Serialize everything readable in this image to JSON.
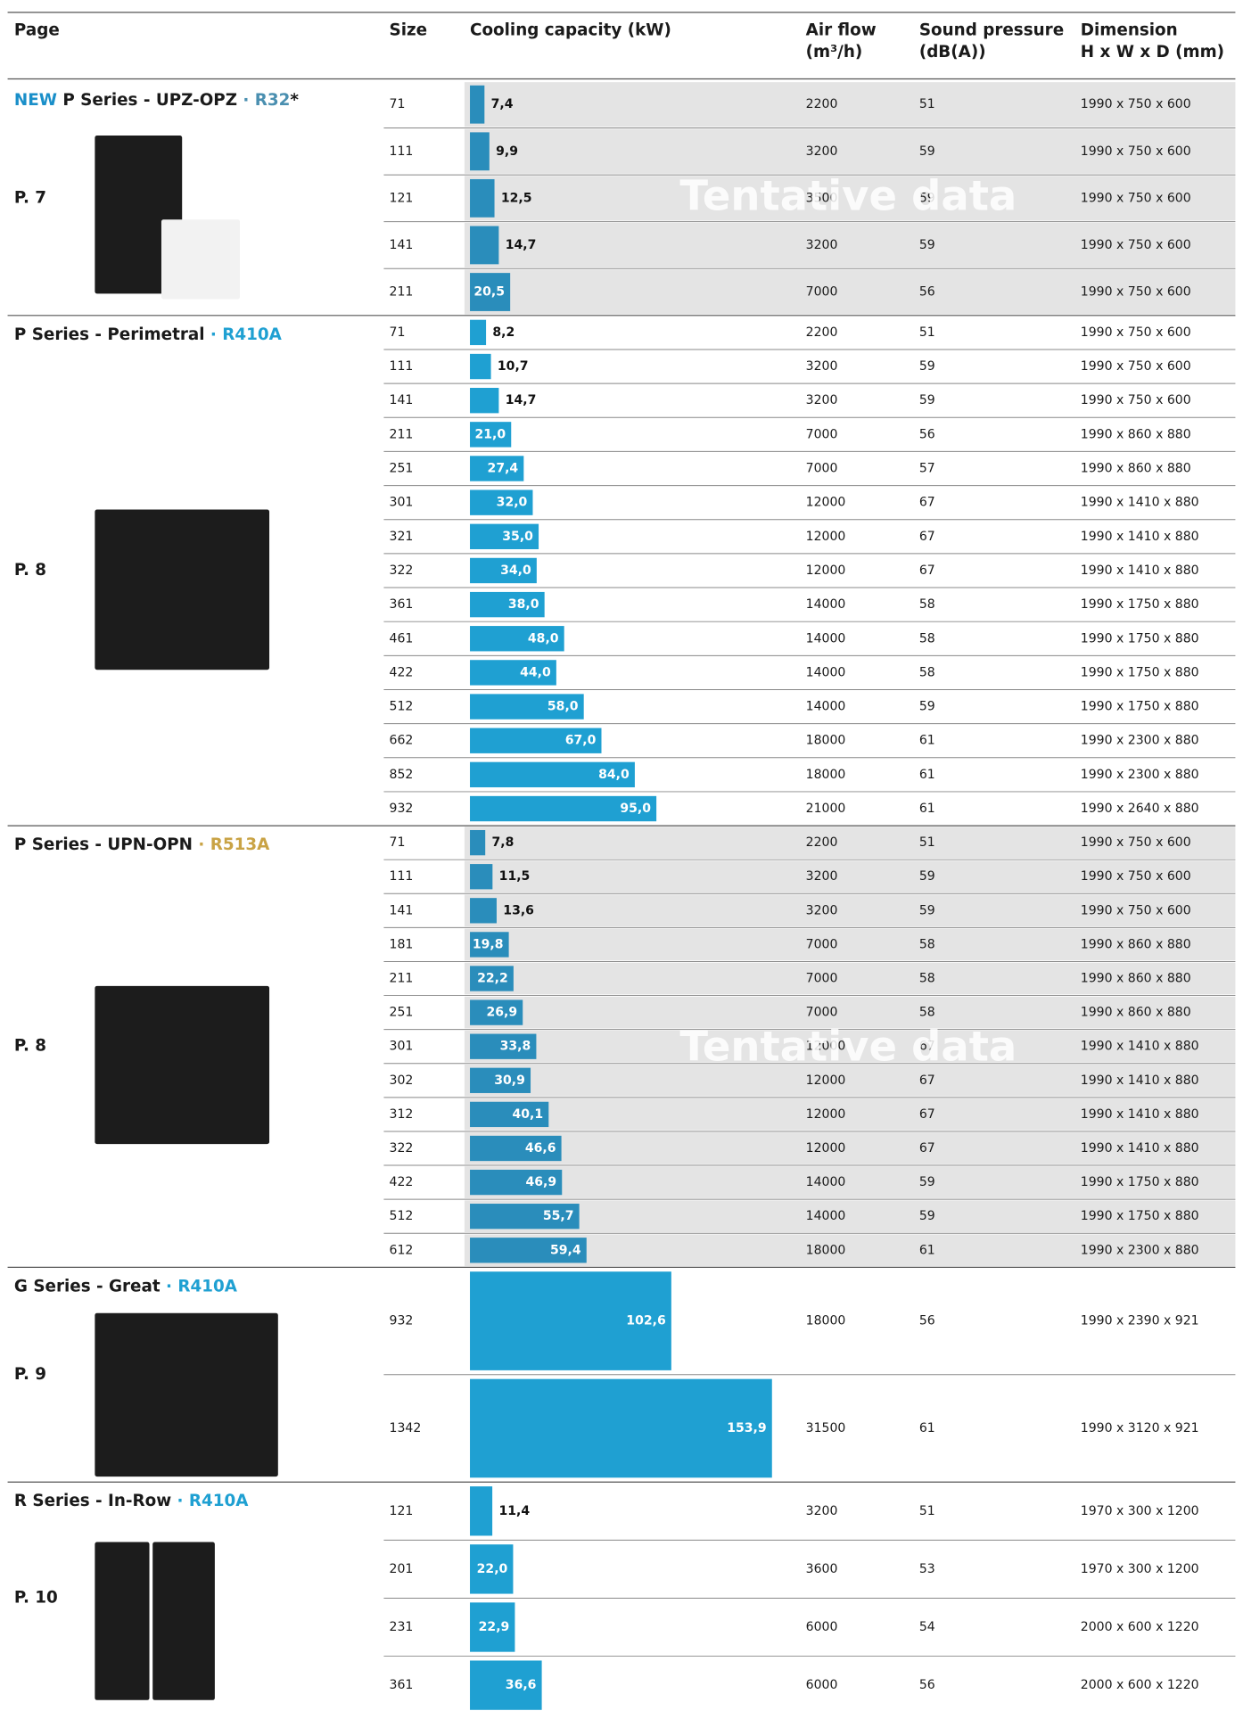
{
  "header": {
    "page": "Page",
    "size": "Size",
    "capacity": "Cooling capacity (kW)",
    "airflow": [
      "Air flow",
      "(m³/h)"
    ],
    "sound": [
      "Sound pressure",
      "(dB(A))"
    ],
    "dimension": [
      "Dimension",
      "H x W x D (mm)"
    ]
  },
  "sections": [
    {
      "new": "NEW",
      "name": "P Series - UPZ-OPZ",
      "refrigerant": "· R32",
      "suffix": "*",
      "refrigerant_color": "#4a8fb0",
      "page": "P. 7",
      "shaded": true,
      "bar_color": "#2a8dbb",
      "watermark": "Tentative data",
      "rows": [
        {
          "size": 71,
          "capacity": {
            "value": 7.4,
            "label": "7,4"
          },
          "airflow": 2200,
          "sound": 51,
          "dimension": "1990 x 750 x 600"
        },
        {
          "size": 111,
          "capacity": {
            "value": 9.9,
            "label": "9,9"
          },
          "airflow": 3200,
          "sound": 59,
          "dimension": "1990 x 750 x 600"
        },
        {
          "size": 121,
          "capacity": {
            "value": 12.5,
            "label": "12,5"
          },
          "airflow": 3500,
          "sound": 59,
          "dimension": "1990 x 750 x 600"
        },
        {
          "size": 141,
          "capacity": {
            "value": 14.7,
            "label": "14,7"
          },
          "airflow": 3200,
          "sound": 59,
          "dimension": "1990 x 750 x 600"
        },
        {
          "size": 211,
          "capacity": {
            "value": 20.5,
            "label": "20,5"
          },
          "airflow": 7000,
          "sound": 56,
          "dimension": "1990 x 750 x 600"
        }
      ]
    },
    {
      "name": "P Series - Perimetral",
      "refrigerant": "· R410A",
      "refrigerant_color": "#1fa0d2",
      "page": "P. 8",
      "shaded": false,
      "bar_color": "#1fa0d2",
      "rows": [
        {
          "size": 71,
          "capacity": {
            "value": 8.2,
            "label": "8,2"
          },
          "airflow": 2200,
          "sound": 51,
          "dimension": "1990 x 750 x 600"
        },
        {
          "size": 111,
          "capacity": {
            "value": 10.7,
            "label": "10,7"
          },
          "airflow": 3200,
          "sound": 59,
          "dimension": "1990 x 750 x 600"
        },
        {
          "size": 141,
          "capacity": {
            "value": 14.7,
            "label": "14,7"
          },
          "airflow": 3200,
          "sound": 59,
          "dimension": "1990 x 750 x 600"
        },
        {
          "size": 211,
          "capacity": {
            "value": 21.0,
            "label": "21,0"
          },
          "airflow": 7000,
          "sound": 56,
          "dimension": "1990 x 860 x 880"
        },
        {
          "size": 251,
          "capacity": {
            "value": 27.4,
            "label": "27,4"
          },
          "airflow": 7000,
          "sound": 57,
          "dimension": "1990 x 860 x 880"
        },
        {
          "size": 301,
          "capacity": {
            "value": 32.0,
            "label": "32,0"
          },
          "airflow": 12000,
          "sound": 67,
          "dimension": "1990 x 1410 x 880"
        },
        {
          "size": 321,
          "capacity": {
            "value": 35.0,
            "label": "35,0"
          },
          "airflow": 12000,
          "sound": 67,
          "dimension": "1990 x 1410 x 880"
        },
        {
          "size": 322,
          "capacity": {
            "value": 34.0,
            "label": "34,0"
          },
          "airflow": 12000,
          "sound": 67,
          "dimension": "1990 x 1410 x 880"
        },
        {
          "size": 361,
          "capacity": {
            "value": 38.0,
            "label": "38,0"
          },
          "airflow": 14000,
          "sound": 58,
          "dimension": "1990 x 1750 x 880"
        },
        {
          "size": 461,
          "capacity": {
            "value": 48.0,
            "label": "48,0"
          },
          "airflow": 14000,
          "sound": 58,
          "dimension": "1990 x 1750 x 880"
        },
        {
          "size": 422,
          "capacity": {
            "value": 44.0,
            "label": "44,0"
          },
          "airflow": 14000,
          "sound": 58,
          "dimension": "1990 x 1750 x 880"
        },
        {
          "size": 512,
          "capacity": {
            "value": 58.0,
            "label": "58,0"
          },
          "airflow": 14000,
          "sound": 59,
          "dimension": "1990 x 1750 x 880"
        },
        {
          "size": 662,
          "capacity": {
            "value": 67.0,
            "label": "67,0"
          },
          "airflow": 18000,
          "sound": 61,
          "dimension": "1990 x 2300 x 880"
        },
        {
          "size": 852,
          "capacity": {
            "value": 84.0,
            "label": "84,0"
          },
          "airflow": 18000,
          "sound": 61,
          "dimension": "1990 x 2300 x 880"
        },
        {
          "size": 932,
          "capacity": {
            "value": 95.0,
            "label": "95,0"
          },
          "airflow": 21000,
          "sound": 61,
          "dimension": "1990 x 2640 x 880"
        }
      ]
    },
    {
      "name": "P Series - UPN-OPN",
      "refrigerant": "· R513A",
      "refrigerant_color": "#c9a345",
      "page": "P. 8",
      "shaded": true,
      "bar_color": "#2a8dbb",
      "watermark": "Tentative data",
      "rows": [
        {
          "size": 71,
          "capacity": {
            "value": 7.8,
            "label": "7,8"
          },
          "airflow": 2200,
          "sound": 51,
          "dimension": "1990 x 750 x 600"
        },
        {
          "size": 111,
          "capacity": {
            "value": 11.5,
            "label": "11,5"
          },
          "airflow": 3200,
          "sound": 59,
          "dimension": "1990 x 750 x 600"
        },
        {
          "size": 141,
          "capacity": {
            "value": 13.6,
            "label": "13,6"
          },
          "airflow": 3200,
          "sound": 59,
          "dimension": "1990 x 750 x 600"
        },
        {
          "size": 181,
          "capacity": {
            "value": 19.8,
            "label": "19,8"
          },
          "airflow": 7000,
          "sound": 58,
          "dimension": "1990 x 860 x 880"
        },
        {
          "size": 211,
          "capacity": {
            "value": 22.2,
            "label": "22,2"
          },
          "airflow": 7000,
          "sound": 58,
          "dimension": "1990 x 860 x 880"
        },
        {
          "size": 251,
          "capacity": {
            "value": 26.9,
            "label": "26,9"
          },
          "airflow": 7000,
          "sound": 58,
          "dimension": "1990 x 860 x 880"
        },
        {
          "size": 301,
          "capacity": {
            "value": 33.8,
            "label": "33,8"
          },
          "airflow": 12000,
          "sound": 67,
          "dimension": "1990 x 1410 x 880"
        },
        {
          "size": 302,
          "capacity": {
            "value": 30.9,
            "label": "30,9"
          },
          "airflow": 12000,
          "sound": 67,
          "dimension": "1990 x 1410 x 880"
        },
        {
          "size": 312,
          "capacity": {
            "value": 40.1,
            "label": "40,1"
          },
          "airflow": 12000,
          "sound": 67,
          "dimension": "1990 x 1410 x 880"
        },
        {
          "size": 322,
          "capacity": {
            "value": 46.6,
            "label": "46,6"
          },
          "airflow": 12000,
          "sound": 67,
          "dimension": "1990 x 1410 x 880"
        },
        {
          "size": 422,
          "capacity": {
            "value": 46.9,
            "label": "46,9"
          },
          "airflow": 14000,
          "sound": 59,
          "dimension": "1990 x 1750 x 880"
        },
        {
          "size": 512,
          "capacity": {
            "value": 55.7,
            "label": "55,7"
          },
          "airflow": 14000,
          "sound": 59,
          "dimension": "1990 x 1750 x 880"
        },
        {
          "size": 612,
          "capacity": {
            "value": 59.4,
            "label": "59,4"
          },
          "airflow": 18000,
          "sound": 61,
          "dimension": "1990 x 2300 x 880"
        }
      ]
    },
    {
      "name": "G Series - Great",
      "refrigerant": "· R410A",
      "refrigerant_color": "#1fa0d2",
      "page": "P. 9",
      "shaded": false,
      "bar_color": "#1fa0d2",
      "rows": [
        {
          "size": 932,
          "capacity": {
            "value": 102.6,
            "label": "102,6"
          },
          "airflow": 18000,
          "sound": 56,
          "dimension": "1990 x 2390 x 921"
        },
        {
          "size": 1342,
          "capacity": {
            "value": 153.9,
            "label": "153,9"
          },
          "airflow": 31500,
          "sound": 61,
          "dimension": "1990 x 3120 x 921"
        }
      ]
    },
    {
      "name": "R Series - In-Row",
      "refrigerant": "· R410A",
      "refrigerant_color": "#1fa0d2",
      "page": "P. 10",
      "shaded": false,
      "bar_color": "#1fa0d2",
      "rows": [
        {
          "size": 121,
          "capacity": {
            "value": 11.4,
            "label": "11,4"
          },
          "airflow": 3200,
          "sound": 51,
          "dimension": "1970 x 300 x 1200"
        },
        {
          "size": 201,
          "capacity": {
            "value": 22.0,
            "label": "22,0"
          },
          "airflow": 3600,
          "sound": 53,
          "dimension": "1970 x 300 x 1200"
        },
        {
          "size": 231,
          "capacity": {
            "value": 22.9,
            "label": "22,9"
          },
          "airflow": 6000,
          "sound": 54,
          "dimension": "2000 x 600 x 1220"
        },
        {
          "size": 361,
          "capacity": {
            "value": 36.6,
            "label": "36,6"
          },
          "airflow": 6000,
          "sound": 56,
          "dimension": "2000 x 600 x 1220"
        }
      ]
    }
  ]
}
